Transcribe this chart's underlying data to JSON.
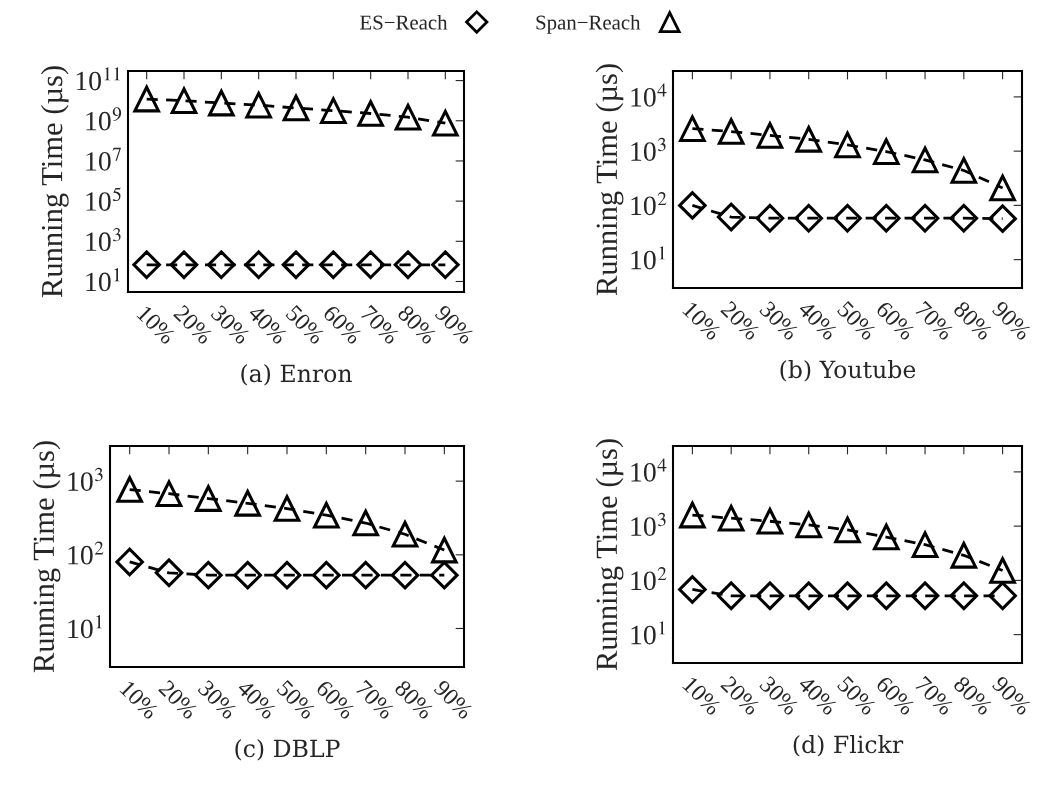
{
  "chart_data": [
    {
      "type": "line",
      "title": "(a) Enron",
      "ylabel": "Running Time (µs)",
      "log": "y",
      "legend": "top",
      "grid": false,
      "categories": [
        "10%",
        "20%",
        "30%",
        "40%",
        "50%",
        "60%",
        "70%",
        "80%",
        "90%"
      ],
      "ylim": [
        3,
        300000000000
      ],
      "yticks": [
        {
          "value": 10,
          "label": "10$^{1}$"
        },
        {
          "value": 1000,
          "label": "10$^{3}$"
        },
        {
          "value": 100000,
          "label": "10$^{5}$"
        },
        {
          "value": 10000000,
          "label": "10$^{7}$"
        },
        {
          "value": 1000000000,
          "label": "10$^{9}$"
        },
        {
          "value": 100000000000,
          "label": "10$^{11}$"
        }
      ],
      "series": [
        {
          "name": "ES−Reach",
          "color": "#000000",
          "marker": "diamond",
          "line_style": "dashed",
          "values": [
            68,
            68,
            68,
            68,
            68,
            68,
            68,
            68,
            68
          ]
        },
        {
          "name": "Span−Reach",
          "color": "#000000",
          "marker": "triangle",
          "line_style": "dashed",
          "values": [
            12000000000,
            10000000000,
            7600000000,
            6000000000,
            4300000000,
            3200000000,
            2300000000,
            1500000000,
            760000000
          ]
        }
      ]
    },
    {
      "type": "line",
      "title": "(b) Youtube",
      "ylabel": "Running Time (µs)",
      "log": "y",
      "legend": "top",
      "grid": false,
      "categories": [
        "10%",
        "20%",
        "30%",
        "40%",
        "50%",
        "60%",
        "70%",
        "80%",
        "90%"
      ],
      "ylim": [
        3,
        30000
      ],
      "yticks": [
        {
          "value": 10,
          "label": "10$^{1}$"
        },
        {
          "value": 100,
          "label": "10$^{2}$"
        },
        {
          "value": 1000,
          "label": "10$^{3}$"
        },
        {
          "value": 10000,
          "label": "10$^{4}$"
        }
      ],
      "series": [
        {
          "name": "ES−Reach",
          "color": "#000000",
          "marker": "diamond",
          "line_style": "dashed",
          "values": [
            100,
            61,
            58,
            58,
            58,
            58,
            58,
            58,
            57
          ]
        },
        {
          "name": "Span−Reach",
          "color": "#000000",
          "marker": "triangle",
          "line_style": "dashed",
          "values": [
            2600,
            2300,
            1950,
            1650,
            1300,
            980,
            690,
            440,
            210
          ]
        }
      ]
    },
    {
      "type": "line",
      "title": "(c) DBLP",
      "ylabel": "Running Time (µs)",
      "log": "y",
      "legend": "top",
      "grid": false,
      "categories": [
        "10%",
        "20%",
        "30%",
        "40%",
        "50%",
        "60%",
        "70%",
        "80%",
        "90%"
      ],
      "ylim": [
        3,
        3000
      ],
      "yticks": [
        {
          "value": 10,
          "label": "10$^{1}$"
        },
        {
          "value": 100,
          "label": "10$^{2}$"
        },
        {
          "value": 1000,
          "label": "10$^{3}$"
        }
      ],
      "series": [
        {
          "name": "ES−Reach",
          "color": "#000000",
          "marker": "diamond",
          "line_style": "dashed",
          "values": [
            80,
            57,
            53,
            53,
            53,
            53,
            53,
            53,
            53
          ]
        },
        {
          "name": "Span−Reach",
          "color": "#000000",
          "marker": "triangle",
          "line_style": "dashed",
          "values": [
            770,
            675,
            580,
            500,
            425,
            345,
            270,
            190,
            116
          ]
        }
      ]
    },
    {
      "type": "line",
      "title": "(d) Flickr",
      "ylabel": "Running Time (µs)",
      "log": "y",
      "legend": "top",
      "grid": false,
      "categories": [
        "10%",
        "20%",
        "30%",
        "40%",
        "50%",
        "60%",
        "70%",
        "80%",
        "90%"
      ],
      "ylim": [
        3,
        30000
      ],
      "yticks": [
        {
          "value": 10,
          "label": "10$^{1}$"
        },
        {
          "value": 100,
          "label": "10$^{2}$"
        },
        {
          "value": 1000,
          "label": "10$^{3}$"
        },
        {
          "value": 10000,
          "label": "10$^{4}$"
        }
      ],
      "series": [
        {
          "name": "ES−Reach",
          "color": "#000000",
          "marker": "diamond",
          "line_style": "dashed",
          "values": [
            68,
            52,
            52,
            52,
            52,
            52,
            52,
            52,
            52
          ]
        },
        {
          "name": "Span−Reach",
          "color": "#000000",
          "marker": "triangle",
          "line_style": "dashed",
          "values": [
            1600,
            1400,
            1230,
            1050,
            850,
            630,
            455,
            290,
            152
          ]
        }
      ]
    }
  ]
}
